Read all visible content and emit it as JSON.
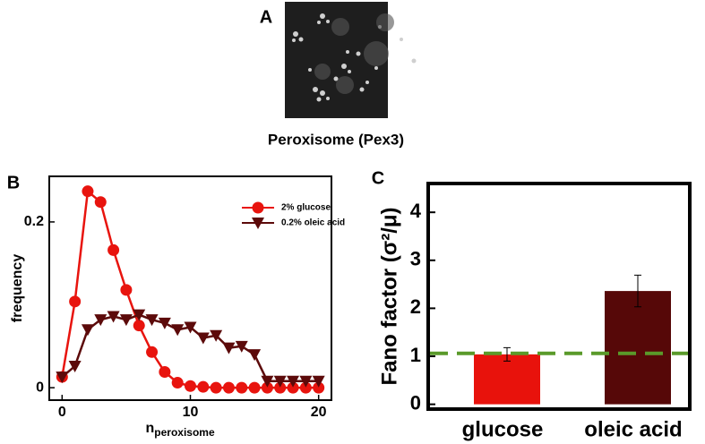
{
  "panel_a": {
    "label": "A",
    "caption": "Peroxisome (Pex3)"
  },
  "chart_data": [
    {
      "type": "line",
      "panel_label": "B",
      "xlabel": "n",
      "xlabel_sub": "peroxisome",
      "ylabel": "frequency",
      "x": [
        0,
        1,
        2,
        3,
        4,
        5,
        6,
        7,
        8,
        9,
        10,
        11,
        12,
        13,
        14,
        15,
        16,
        17,
        18,
        19,
        20
      ],
      "xlim": [
        -1,
        21
      ],
      "xticks": [
        0,
        10,
        20
      ],
      "ylim": [
        -0.015,
        0.255
      ],
      "yticks": [
        0,
        0.2
      ],
      "grid": false,
      "series": [
        {
          "name": "2% glucose",
          "color": "#e8140e",
          "marker": "circle",
          "values": [
            0.013,
            0.104,
            0.237,
            0.224,
            0.166,
            0.118,
            0.075,
            0.043,
            0.019,
            0.006,
            0.002,
            0.001,
            0,
            0,
            0,
            0,
            0,
            0,
            0,
            0,
            0
          ]
        },
        {
          "name": "0.2% oleic acid",
          "color": "#5c0a0a",
          "marker": "triangle-down",
          "values": [
            0.013,
            0.026,
            0.07,
            0.082,
            0.086,
            0.082,
            0.088,
            0.082,
            0.078,
            0.07,
            0.073,
            0.06,
            0.063,
            0.048,
            0.05,
            0.04,
            0.008,
            0.008,
            0.008,
            0.008,
            0.008
          ]
        }
      ]
    },
    {
      "type": "bar",
      "panel_label": "C",
      "ylabel": "Fano factor (σ²/μ)",
      "categories": [
        "glucose",
        "oleic acid"
      ],
      "values": [
        1.04,
        2.36
      ],
      "errors": [
        0.14,
        0.33
      ],
      "colors": [
        "#e8120c",
        "#560808"
      ],
      "ylim": [
        -0.1,
        4.6
      ],
      "yticks": [
        0,
        1,
        2,
        3,
        4
      ],
      "reference_line": 1.06,
      "reference_color": "#5a9a2a",
      "grid": false
    }
  ]
}
